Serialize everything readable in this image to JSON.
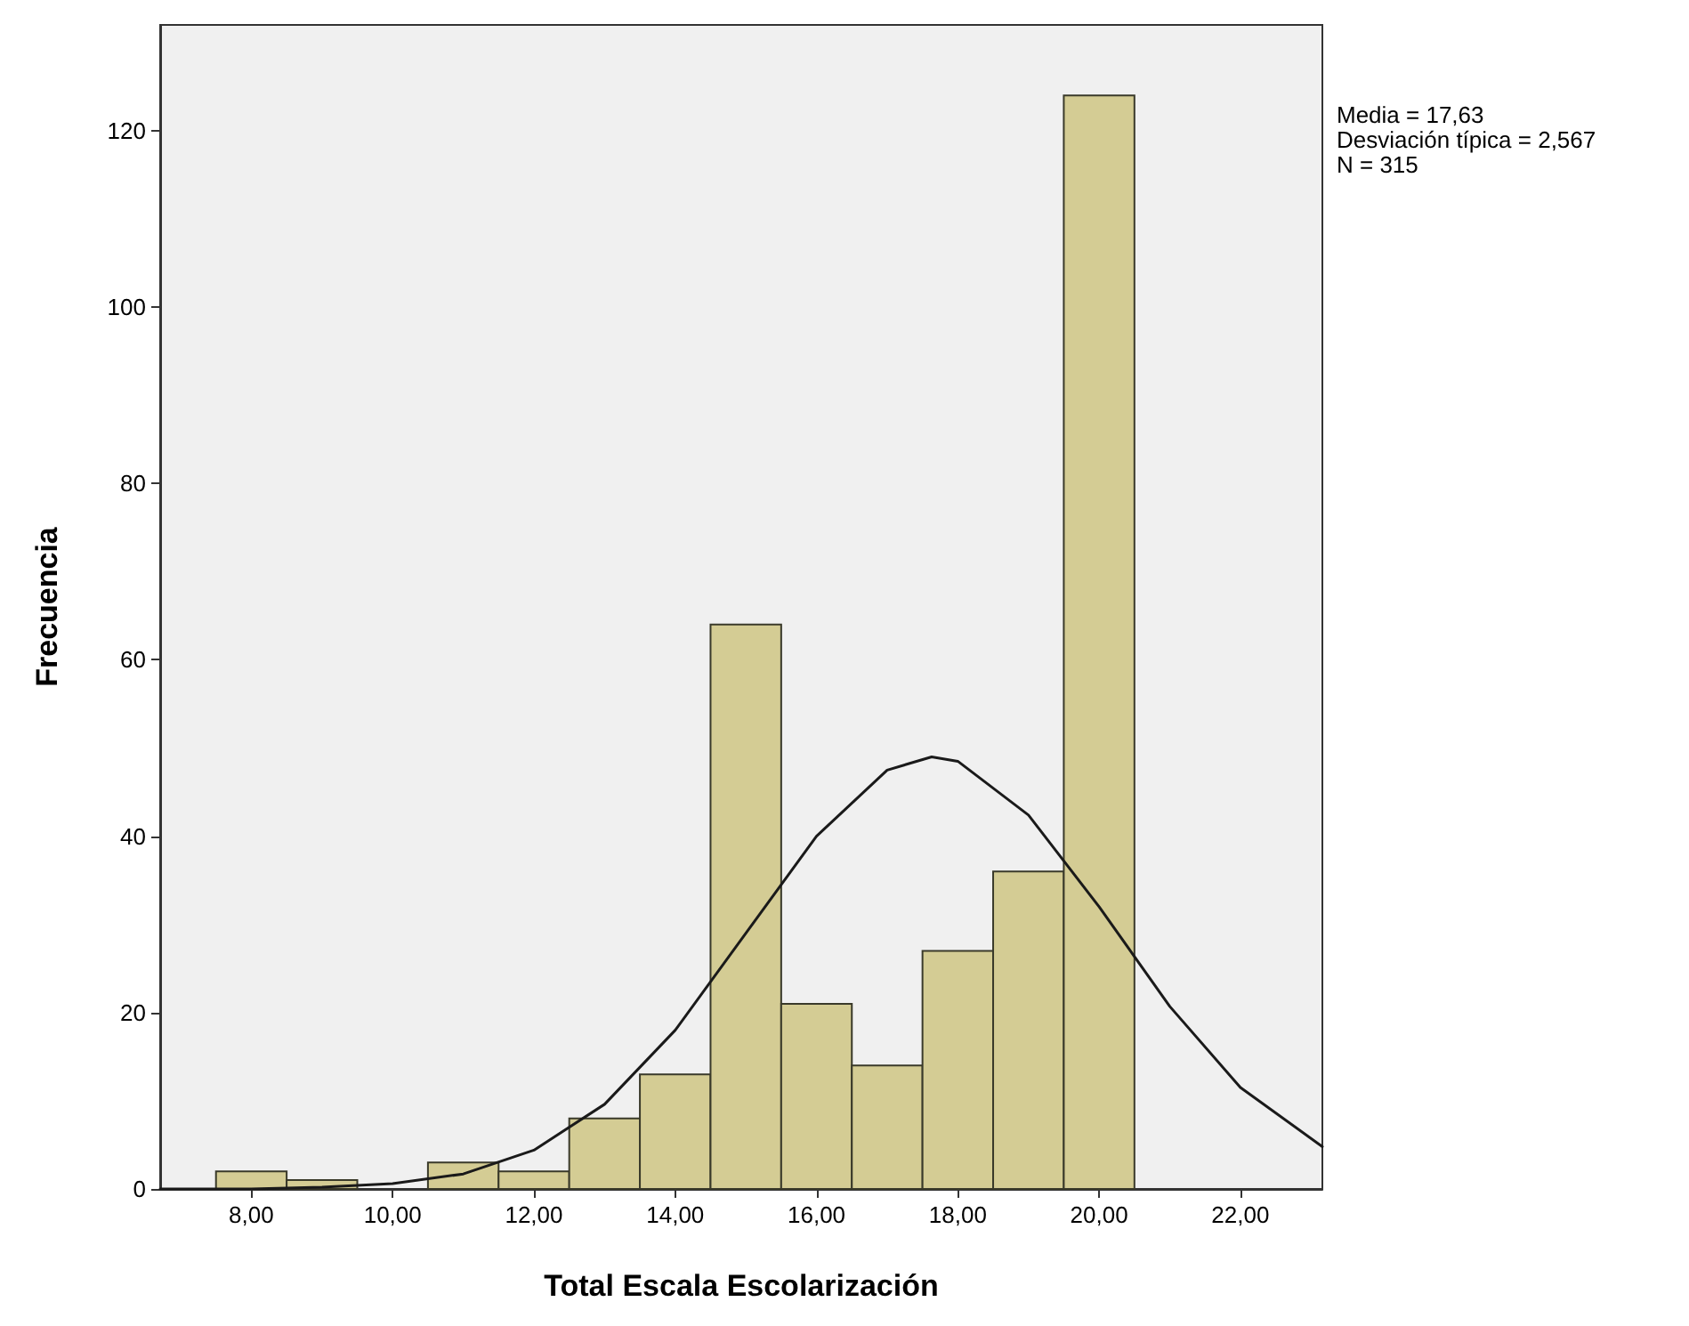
{
  "chart_data": {
    "type": "histogram",
    "xlabel": "Total Escala Escolarización",
    "ylabel": "Frecuencia",
    "bins": [
      7.5,
      8.5,
      9.5,
      10.5,
      11.5,
      12.5,
      13.5,
      14.5,
      15.5,
      16.5,
      17.5,
      18.5,
      19.5,
      20.5
    ],
    "values": [
      2,
      1,
      0,
      3,
      2,
      8,
      13,
      64,
      21,
      14,
      27,
      36,
      124
    ],
    "color": "#d4cc94",
    "series": [
      {
        "type": "line",
        "color": "#1a1a1a",
        "x": [
          6.71,
          8,
          9,
          10,
          11,
          12,
          13,
          14,
          15,
          16,
          17,
          17.63,
          18,
          19,
          20,
          21,
          22,
          23.16
        ],
        "values": [
          0,
          0,
          0.2,
          0.6,
          1.7,
          4.4,
          9.6,
          18,
          29,
          40,
          47.5,
          49,
          48.5,
          42.4,
          32,
          20.7,
          11.5,
          4.8
        ]
      }
    ],
    "xlim": [
      6.71,
      23.16
    ],
    "xticks": [
      {
        "value": 8,
        "label": "8,00"
      },
      {
        "value": 10,
        "label": "10,00"
      },
      {
        "value": 12,
        "label": "12,00"
      },
      {
        "value": 14,
        "label": "14,00"
      },
      {
        "value": 16,
        "label": "16,00"
      },
      {
        "value": 18,
        "label": "18,00"
      },
      {
        "value": 20,
        "label": "20,00"
      },
      {
        "value": 22,
        "label": "22,00"
      }
    ],
    "ylim": [
      0,
      132
    ],
    "yticks": [
      0,
      20,
      40,
      60,
      80,
      100,
      120
    ],
    "grid": false,
    "annotations": [
      "Media = 17,63",
      "Desviación típica = 2,567",
      "N = 315"
    ]
  }
}
